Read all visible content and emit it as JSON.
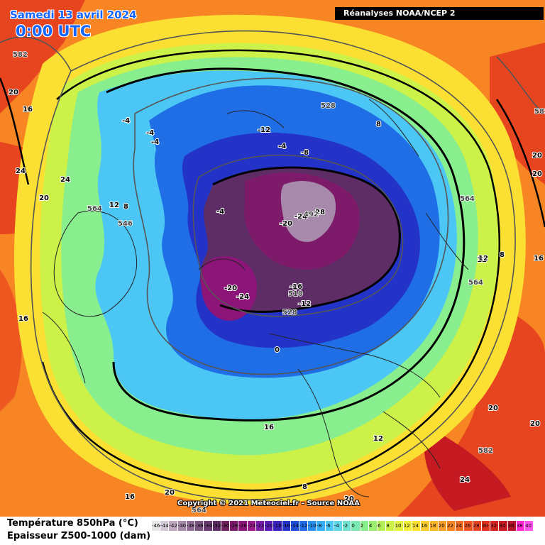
{
  "header": {
    "date": "Samedi 13 avril 2024",
    "time": "0:00 UTC",
    "source": "Réanalyses NOAA/NCEP 2"
  },
  "footer": {
    "copyright": "Copyright © 2021 Meteociel.fr - Source NOAA",
    "legend_line1": "Température 850hPa (°C)",
    "legend_line2": "Epaisseur Z500-1000 (dam)"
  },
  "scale": {
    "values": [
      "-46",
      "-44",
      "-42",
      "-40",
      "-38",
      "-36",
      "-34",
      "-32",
      "-30",
      "-28",
      "-26",
      "-24",
      "-22",
      "-20",
      "-18",
      "-16",
      "-14",
      "-12",
      "-10",
      "-8",
      "-6",
      "-4",
      "-2",
      "0",
      "2",
      "4",
      "6",
      "8",
      "10",
      "12",
      "14",
      "16",
      "18",
      "20",
      "22",
      "24",
      "26",
      "28",
      "30",
      "32",
      "34",
      "36",
      "38",
      "40"
    ],
    "colors": [
      "#e6e6e6",
      "#d4c9d6",
      "#bfa8c0",
      "#a78aab",
      "#8e6c95",
      "#7a5381",
      "#6a3d72",
      "#5e2d66",
      "#70235e",
      "#7e1a6a",
      "#8d157a",
      "#9a1a8d",
      "#7a1caa",
      "#5a1eb6",
      "#3a23bf",
      "#2433c7",
      "#1f4fd6",
      "#1f6ee6",
      "#2790f0",
      "#37aef5",
      "#4cc7f5",
      "#5fd7e8",
      "#6ee3d0",
      "#7aeab2",
      "#88ee8e",
      "#9aef6e",
      "#b3f055",
      "#ccf148",
      "#e2f23e",
      "#f3ef38",
      "#fbe033",
      "#fdcd2e",
      "#fcb62a",
      "#fa9d27",
      "#f78524",
      "#f36e22",
      "#ee5820",
      "#e7451f",
      "#df331e",
      "#d4241e",
      "#c61a22",
      "#b5142a",
      "#ff2ad6",
      "#ff55ee"
    ]
  },
  "labels": {
    "temperature": [
      "-4",
      "-4",
      "-4",
      "-12",
      "-4",
      "-8",
      "8",
      "24",
      "24",
      "20",
      "20",
      "16",
      "12",
      "8",
      "-4",
      "-28",
      "-24",
      "-20",
      "-20",
      "-24",
      "-16",
      "-12",
      "8",
      "12",
      "16",
      "0",
      "16",
      "20",
      "12",
      "8",
      "20",
      "24",
      "20",
      "16",
      "20",
      "20",
      "20",
      "16",
      "12"
    ],
    "thickness": [
      "582",
      "528",
      "564",
      "564",
      "546",
      "564",
      "492",
      "510",
      "528",
      "582",
      "582",
      "564"
    ]
  },
  "colors": {
    "title": "#1565ff",
    "source_bg": "#000000",
    "map_warm": "#f36e22",
    "map_cold": "#5e2d66"
  }
}
